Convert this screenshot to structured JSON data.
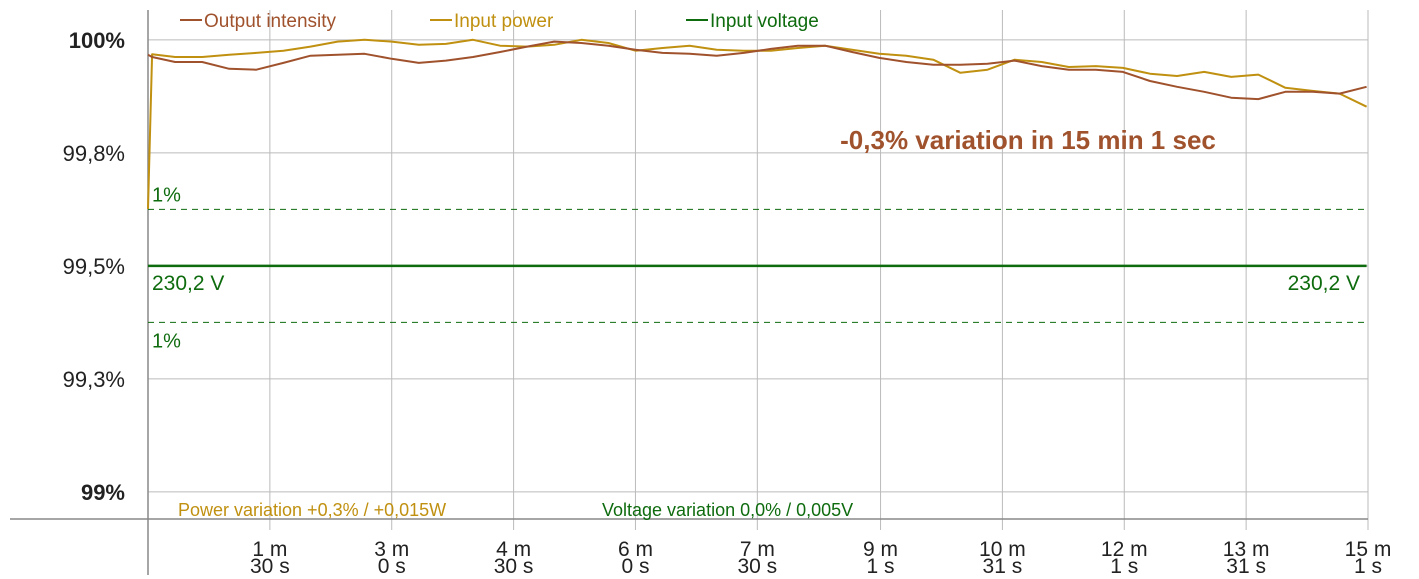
{
  "chart_data": {
    "type": "line",
    "x": [
      0,
      3,
      20,
      40,
      60,
      80,
      100,
      120,
      140,
      160,
      180,
      200,
      220,
      240,
      260,
      280,
      300,
      320,
      340,
      360,
      380,
      400,
      420,
      440,
      460,
      480,
      500,
      520,
      540,
      560,
      580,
      600,
      620,
      640,
      660,
      680,
      700,
      720,
      740,
      760,
      780,
      800,
      820,
      840,
      860,
      880,
      900
    ],
    "series": [
      {
        "name": "Output intensity",
        "color": "#a0522d",
        "values": [
          99.967,
          99.962,
          99.951,
          99.951,
          99.936,
          99.934,
          99.949,
          99.965,
          99.967,
          99.969,
          99.958,
          99.949,
          99.954,
          99.962,
          99.973,
          99.985,
          99.996,
          99.993,
          99.987,
          99.978,
          99.971,
          99.969,
          99.965,
          99.971,
          99.98,
          99.987,
          99.987,
          99.973,
          99.96,
          99.951,
          99.945,
          99.945,
          99.947,
          99.954,
          99.942,
          99.934,
          99.934,
          99.929,
          99.909,
          99.896,
          99.885,
          99.872,
          99.869,
          99.885,
          99.885,
          99.881,
          99.896
        ]
      },
      {
        "name": "Input power",
        "color": "#c09010",
        "values": [
          99.626,
          99.968,
          99.962,
          99.962,
          99.967,
          99.971,
          99.976,
          99.985,
          99.996,
          100,
          99.996,
          99.989,
          99.991,
          100,
          99.987,
          99.985,
          99.989,
          100,
          99.993,
          99.976,
          99.982,
          99.987,
          99.978,
          99.976,
          99.976,
          99.982,
          99.987,
          99.978,
          99.969,
          99.965,
          99.956,
          99.927,
          99.934,
          99.956,
          99.951,
          99.94,
          99.942,
          99.938,
          99.925,
          99.92,
          99.929,
          99.918,
          99.923,
          99.894,
          99.887,
          99.881,
          99.852
        ]
      },
      {
        "name": "Input voltage",
        "color": "#0e6b0e",
        "values": [
          99.5,
          99.5,
          99.5,
          99.5,
          99.5,
          99.5,
          99.5,
          99.5,
          99.5,
          99.5,
          99.5,
          99.5,
          99.5,
          99.5,
          99.5,
          99.5,
          99.5,
          99.5,
          99.5,
          99.5,
          99.5,
          99.5,
          99.5,
          99.5,
          99.5,
          99.5,
          99.5,
          99.5,
          99.5,
          99.5,
          99.5,
          99.5,
          99.5,
          99.5,
          99.5,
          99.5,
          99.5,
          99.5,
          99.5,
          99.5,
          99.5,
          99.5,
          99.5,
          99.5,
          99.5,
          99.5,
          99.5
        ]
      }
    ],
    "xlim": [
      0,
      901
    ],
    "xticks": [
      {
        "value": 90,
        "label": [
          "1 m",
          "30 s"
        ]
      },
      {
        "value": 180,
        "label": [
          "3 m",
          "0 s"
        ]
      },
      {
        "value": 270,
        "label": [
          "4 m",
          "30 s"
        ]
      },
      {
        "value": 360,
        "label": [
          "6 m",
          "0 s"
        ]
      },
      {
        "value": 450,
        "label": [
          "7 m",
          "30 s"
        ]
      },
      {
        "value": 541,
        "label": [
          "9 m",
          "1 s"
        ]
      },
      {
        "value": 631,
        "label": [
          "10 m",
          "31 s"
        ]
      },
      {
        "value": 721,
        "label": [
          "12 m",
          "1 s"
        ]
      },
      {
        "value": 811,
        "label": [
          "13 m",
          "31 s"
        ]
      },
      {
        "value": 901,
        "label": [
          "15 m",
          "1 s"
        ]
      }
    ],
    "ylim": [
      98.94,
      100.066
    ],
    "yticks": [
      {
        "value": 100,
        "label": "100%"
      },
      {
        "value": 99.75,
        "label": "99,8%"
      },
      {
        "value": 99.5,
        "label": "99,5%"
      },
      {
        "value": 99.25,
        "label": "99,3%"
      },
      {
        "value": 99,
        "label": "99%"
      }
    ],
    "grid": true,
    "reference_lines": [
      {
        "value": 99.625,
        "label": "1%"
      },
      {
        "value": 99.375,
        "label": "1%"
      }
    ],
    "voltage_label": "230,2 V",
    "annotations": {
      "variation": "-0,3% variation in 15 min 1 sec",
      "power": "Power variation +0,3% / +0,015W",
      "voltage": "Voltage variation 0,0% / 0,005V"
    }
  }
}
